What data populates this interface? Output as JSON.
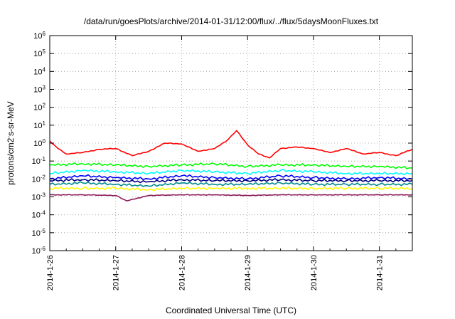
{
  "chart_data": {
    "type": "line",
    "title": "/data/run/goesPlots/archive/2014-01-31/12:00/flux/../flux/5daysMoonFluxes.txt",
    "xlabel": "Coordinated Universal Time (UTC)",
    "ylabel": "protons/cm2-s-sr-MeV",
    "y_scale": "log",
    "ylim": [
      1e-06,
      1000000.0
    ],
    "xlim": [
      "2014-01-26T00:00",
      "2014-01-31T12:00"
    ],
    "grid": true,
    "x_ticks": [
      "2014-1-26",
      "2014-1-27",
      "2014-1-28",
      "2014-1-29",
      "2014-1-30",
      "2014-1-31"
    ],
    "y_ticks": [
      {
        "base": "10",
        "exp": "6",
        "value": 1000000.0
      },
      {
        "base": "10",
        "exp": "5",
        "value": 100000.0
      },
      {
        "base": "10",
        "exp": "4",
        "value": 10000.0
      },
      {
        "base": "10",
        "exp": "3",
        "value": 1000.0
      },
      {
        "base": "10",
        "exp": "2",
        "value": 100.0
      },
      {
        "base": "10",
        "exp": "1",
        "value": 10.0
      },
      {
        "base": "10",
        "exp": "0",
        "value": 1.0
      },
      {
        "base": "10",
        "exp": "-1",
        "value": 0.1
      },
      {
        "base": "10",
        "exp": "-2",
        "value": 0.01
      },
      {
        "base": "10",
        "exp": "-3",
        "value": 0.001
      },
      {
        "base": "10",
        "exp": "-4",
        "value": 0.0001
      },
      {
        "base": "10",
        "exp": "-5",
        "value": 1e-05
      },
      {
        "base": "10",
        "exp": "-6",
        "value": 1e-06
      }
    ],
    "series": [
      {
        "color": "#ff0000",
        "x": [
          "2014-01-26T00:00",
          "2014-01-26T03:00",
          "2014-01-26T06:00",
          "2014-01-26T12:00",
          "2014-01-26T18:00",
          "2014-01-27T00:00",
          "2014-01-27T06:00",
          "2014-01-27T12:00",
          "2014-01-27T18:00",
          "2014-01-28T00:00",
          "2014-01-28T06:00",
          "2014-01-28T12:00",
          "2014-01-28T16:00",
          "2014-01-28T20:00",
          "2014-01-29T00:00",
          "2014-01-29T04:00",
          "2014-01-29T08:00",
          "2014-01-29T12:00",
          "2014-01-29T18:00",
          "2014-01-30T00:00",
          "2014-01-30T06:00",
          "2014-01-30T12:00",
          "2014-01-30T18:00",
          "2014-01-31T00:00",
          "2014-01-31T06:00",
          "2014-01-31T12:00"
        ],
        "values": [
          1.3,
          0.5,
          0.25,
          0.3,
          0.45,
          0.5,
          0.2,
          0.35,
          1.0,
          0.9,
          0.35,
          0.5,
          1.2,
          5.0,
          0.8,
          0.25,
          0.15,
          0.5,
          0.6,
          0.5,
          0.3,
          0.5,
          0.25,
          0.3,
          0.2,
          0.45
        ]
      },
      {
        "color": "#00ff00",
        "x": [
          "2014-01-26T00:00",
          "2014-01-26T12:00",
          "2014-01-27T00:00",
          "2014-01-27T12:00",
          "2014-01-28T00:00",
          "2014-01-28T12:00",
          "2014-01-29T00:00",
          "2014-01-29T12:00",
          "2014-01-30T00:00",
          "2014-01-30T12:00",
          "2014-01-31T00:00",
          "2014-01-31T12:00"
        ],
        "values": [
          0.06,
          0.07,
          0.06,
          0.05,
          0.06,
          0.07,
          0.05,
          0.06,
          0.06,
          0.05,
          0.05,
          0.04
        ]
      },
      {
        "color": "#00ffff",
        "x": [
          "2014-01-26T00:00",
          "2014-01-26T12:00",
          "2014-01-27T00:00",
          "2014-01-27T12:00",
          "2014-01-28T00:00",
          "2014-01-28T12:00",
          "2014-01-29T00:00",
          "2014-01-29T12:00",
          "2014-01-30T00:00",
          "2014-01-30T12:00",
          "2014-01-31T00:00",
          "2014-01-31T12:00"
        ],
        "values": [
          0.02,
          0.03,
          0.025,
          0.02,
          0.03,
          0.025,
          0.02,
          0.03,
          0.025,
          0.02,
          0.02,
          0.02
        ]
      },
      {
        "color": "#0000ff",
        "x": [
          "2014-01-26T00:00",
          "2014-01-26T12:00",
          "2014-01-27T00:00",
          "2014-01-27T12:00",
          "2014-01-28T00:00",
          "2014-01-28T12:00",
          "2014-01-29T00:00",
          "2014-01-29T12:00",
          "2014-01-30T00:00",
          "2014-01-30T12:00",
          "2014-01-31T00:00",
          "2014-01-31T12:00"
        ],
        "values": [
          0.01,
          0.015,
          0.012,
          0.01,
          0.015,
          0.012,
          0.01,
          0.015,
          0.012,
          0.01,
          0.012,
          0.01
        ]
      },
      {
        "color": "#000080",
        "x": [
          "2014-01-26T00:00",
          "2014-01-26T12:00",
          "2014-01-27T00:00",
          "2014-01-27T12:00",
          "2014-01-28T00:00",
          "2014-01-28T12:00",
          "2014-01-29T00:00",
          "2014-01-29T12:00",
          "2014-01-30T00:00",
          "2014-01-30T12:00",
          "2014-01-31T00:00",
          "2014-01-31T12:00"
        ],
        "values": [
          0.008,
          0.009,
          0.008,
          0.007,
          0.009,
          0.008,
          0.008,
          0.009,
          0.008,
          0.008,
          0.008,
          0.008
        ]
      },
      {
        "color": "#008b8b",
        "x": [
          "2014-01-26T00:00",
          "2014-01-26T12:00",
          "2014-01-27T00:00",
          "2014-01-27T12:00",
          "2014-01-28T00:00",
          "2014-01-28T12:00",
          "2014-01-29T00:00",
          "2014-01-29T12:00",
          "2014-01-30T00:00",
          "2014-01-30T12:00",
          "2014-01-31T00:00",
          "2014-01-31T12:00"
        ],
        "values": [
          0.005,
          0.006,
          0.005,
          0.004,
          0.006,
          0.005,
          0.005,
          0.006,
          0.005,
          0.005,
          0.005,
          0.005
        ]
      },
      {
        "color": "#ffff00",
        "x": [
          "2014-01-26T00:00",
          "2014-01-26T12:00",
          "2014-01-27T00:00",
          "2014-01-27T12:00",
          "2014-01-28T00:00",
          "2014-01-28T12:00",
          "2014-01-29T00:00",
          "2014-01-29T12:00",
          "2014-01-30T00:00",
          "2014-01-30T12:00",
          "2014-01-31T00:00",
          "2014-01-31T12:00"
        ],
        "values": [
          0.003,
          0.003,
          0.003,
          0.0025,
          0.003,
          0.003,
          0.003,
          0.003,
          0.003,
          0.003,
          0.003,
          0.003
        ]
      },
      {
        "color": "#8b1a5a",
        "x": [
          "2014-01-26T00:00",
          "2014-01-26T12:00",
          "2014-01-27T00:00",
          "2014-01-27T04:00",
          "2014-01-27T12:00",
          "2014-01-28T00:00",
          "2014-01-28T12:00",
          "2014-01-29T00:00",
          "2014-01-29T12:00",
          "2014-01-30T00:00",
          "2014-01-30T12:00",
          "2014-01-31T00:00",
          "2014-01-31T12:00"
        ],
        "values": [
          0.0013,
          0.0013,
          0.0012,
          0.0006,
          0.0012,
          0.0013,
          0.0013,
          0.0012,
          0.0013,
          0.0013,
          0.0013,
          0.0013,
          0.0013
        ]
      }
    ]
  }
}
